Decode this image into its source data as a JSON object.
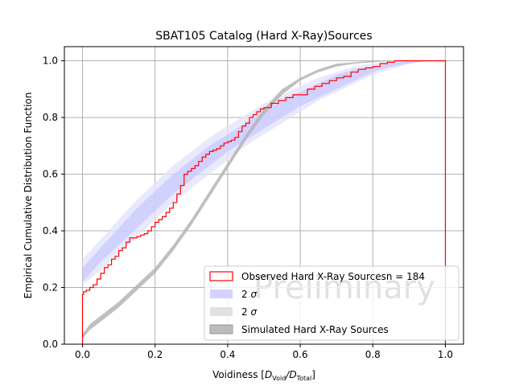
{
  "chart_data": {
    "type": "line",
    "title": "SBAT105 Catalog (Hard X-Ray)Sources",
    "xlabel": {
      "prefix": "Voidiness [",
      "D1": "D",
      "sub1": "Void",
      "slash": "/",
      "D2": "D",
      "sub2": "Total",
      "suffix": "]"
    },
    "ylabel": "Empirical Cumulative Distribution Function",
    "xlim": [
      -0.05,
      1.05
    ],
    "ylim": [
      0.0,
      1.05
    ],
    "xticks": [
      "0.0",
      "0.2",
      "0.4",
      "0.6",
      "0.8",
      "1.0"
    ],
    "xtick_values": [
      0.0,
      0.2,
      0.4,
      0.6,
      0.8,
      1.0
    ],
    "yticks": [
      "0.0",
      "0.2",
      "0.4",
      "0.6",
      "0.8",
      "1.0"
    ],
    "ytick_values": [
      0.0,
      0.2,
      0.4,
      0.6,
      0.8,
      1.0
    ],
    "grid": true,
    "legend_position": "lower-right",
    "watermark": "Preliminary",
    "legend": [
      {
        "label": "Observed Hard X-Ray Sourcesn = 184",
        "style": "step",
        "color": "#ff0000"
      },
      {
        "label": "2 σ",
        "style": "band",
        "color": "#c8c8ff"
      },
      {
        "label": "2 σ",
        "style": "band",
        "color": "#d9d9d9"
      },
      {
        "label": "Simulated Hard X-Ray Sources",
        "style": "band",
        "color": "#aaaaaa"
      }
    ],
    "series": [
      {
        "name": "Observed Hard X-Ray Sources",
        "kind": "step",
        "color": "#ff0000",
        "n": 184,
        "x": [
          0.0,
          0.003,
          0.01,
          0.02,
          0.03,
          0.04,
          0.05,
          0.06,
          0.07,
          0.08,
          0.09,
          0.1,
          0.11,
          0.12,
          0.13,
          0.14,
          0.15,
          0.16,
          0.17,
          0.18,
          0.19,
          0.2,
          0.21,
          0.22,
          0.23,
          0.24,
          0.25,
          0.26,
          0.27,
          0.28,
          0.29,
          0.3,
          0.31,
          0.32,
          0.33,
          0.34,
          0.35,
          0.36,
          0.37,
          0.38,
          0.39,
          0.4,
          0.41,
          0.42,
          0.43,
          0.44,
          0.45,
          0.46,
          0.47,
          0.48,
          0.49,
          0.5,
          0.52,
          0.54,
          0.56,
          0.58,
          0.6,
          0.62,
          0.64,
          0.66,
          0.68,
          0.7,
          0.72,
          0.74,
          0.76,
          0.78,
          0.8,
          0.82,
          0.84,
          0.86,
          0.88,
          0.9,
          0.95,
          1.0
        ],
        "y": [
          0.175,
          0.185,
          0.19,
          0.2,
          0.21,
          0.23,
          0.25,
          0.27,
          0.28,
          0.3,
          0.31,
          0.33,
          0.34,
          0.36,
          0.375,
          0.375,
          0.38,
          0.385,
          0.39,
          0.4,
          0.415,
          0.43,
          0.44,
          0.45,
          0.465,
          0.48,
          0.5,
          0.53,
          0.56,
          0.6,
          0.61,
          0.62,
          0.63,
          0.645,
          0.66,
          0.67,
          0.68,
          0.685,
          0.69,
          0.7,
          0.71,
          0.715,
          0.72,
          0.73,
          0.75,
          0.77,
          0.78,
          0.8,
          0.81,
          0.82,
          0.83,
          0.835,
          0.85,
          0.86,
          0.87,
          0.88,
          0.88,
          0.9,
          0.91,
          0.92,
          0.93,
          0.94,
          0.945,
          0.96,
          0.97,
          0.975,
          0.98,
          0.99,
          0.995,
          1.0,
          1.0,
          1.0,
          1.0,
          1.0
        ]
      },
      {
        "name": "2 σ (outer)",
        "kind": "band",
        "color": "#e2e2fb",
        "x": [
          0.0,
          0.05,
          0.1,
          0.15,
          0.2,
          0.25,
          0.3,
          0.35,
          0.4,
          0.45,
          0.5,
          0.55,
          0.6,
          0.65,
          0.7,
          0.75,
          0.8,
          0.85,
          0.9,
          0.95,
          1.0
        ],
        "lower": [
          0.21,
          0.26,
          0.32,
          0.38,
          0.44,
          0.5,
          0.55,
          0.6,
          0.65,
          0.7,
          0.74,
          0.78,
          0.82,
          0.86,
          0.89,
          0.92,
          0.95,
          0.97,
          0.99,
          1.0,
          1.0
        ],
        "upper": [
          0.3,
          0.37,
          0.44,
          0.51,
          0.57,
          0.63,
          0.68,
          0.73,
          0.77,
          0.81,
          0.85,
          0.88,
          0.91,
          0.94,
          0.96,
          0.98,
          0.99,
          1.0,
          1.0,
          1.0,
          1.0
        ]
      },
      {
        "name": "2 σ (inner)",
        "kind": "band",
        "color": "#c8c8ff",
        "x": [
          0.0,
          0.05,
          0.1,
          0.15,
          0.2,
          0.25,
          0.3,
          0.35,
          0.4,
          0.45,
          0.5,
          0.55,
          0.6,
          0.65,
          0.7,
          0.75,
          0.8,
          0.85,
          0.9,
          0.95,
          1.0
        ],
        "lower": [
          0.22,
          0.29,
          0.35,
          0.41,
          0.47,
          0.53,
          0.58,
          0.63,
          0.68,
          0.72,
          0.76,
          0.8,
          0.84,
          0.87,
          0.9,
          0.93,
          0.96,
          0.98,
          0.99,
          1.0,
          1.0
        ],
        "upper": [
          0.27,
          0.34,
          0.41,
          0.48,
          0.54,
          0.6,
          0.65,
          0.7,
          0.74,
          0.78,
          0.82,
          0.86,
          0.89,
          0.92,
          0.95,
          0.97,
          0.98,
          0.99,
          1.0,
          1.0,
          1.0
        ]
      },
      {
        "name": "Simulated Hard X-Ray Sources",
        "kind": "band",
        "color": "#b4b4b4",
        "x": [
          0.0,
          0.02,
          0.05,
          0.1,
          0.15,
          0.2,
          0.25,
          0.3,
          0.35,
          0.4,
          0.45,
          0.5,
          0.55,
          0.6,
          0.65,
          0.7,
          0.75,
          0.8,
          0.85,
          0.9,
          0.95,
          1.0
        ],
        "lower": [
          0.02,
          0.05,
          0.08,
          0.13,
          0.19,
          0.25,
          0.33,
          0.42,
          0.52,
          0.62,
          0.72,
          0.81,
          0.88,
          0.93,
          0.96,
          0.98,
          0.99,
          0.995,
          1.0,
          1.0,
          1.0,
          1.0
        ],
        "upper": [
          0.035,
          0.07,
          0.1,
          0.15,
          0.21,
          0.27,
          0.35,
          0.44,
          0.54,
          0.64,
          0.74,
          0.83,
          0.9,
          0.94,
          0.97,
          0.99,
          0.995,
          1.0,
          1.0,
          1.0,
          1.0,
          1.0
        ]
      }
    ]
  }
}
